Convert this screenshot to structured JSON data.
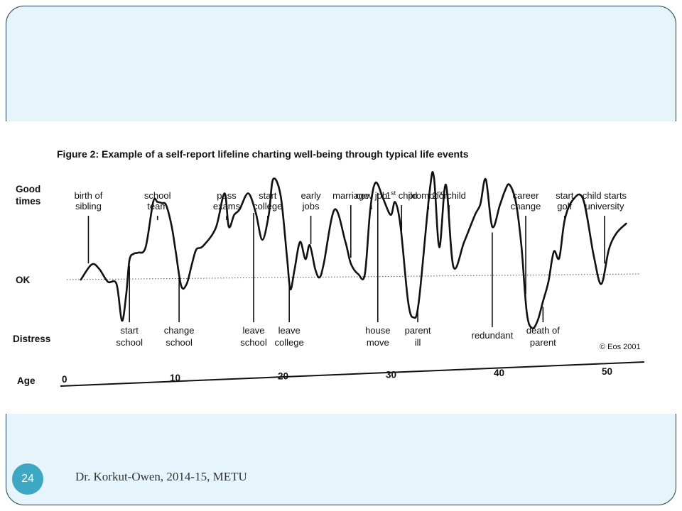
{
  "footer": {
    "page_number": "24",
    "author_text": "Dr. Korkut-Owen, 2014-15, METU"
  },
  "colors": {
    "slide_background": "#e6f5fb",
    "slide_border": "#1b3b5a",
    "badge": "#3ea7c3",
    "line": "#111111"
  },
  "chart_data": {
    "type": "line",
    "title": "Figure 2: Example of a self-report lifeline charting well-being through typical life events",
    "xlabel": "Age",
    "x_ticks": [
      "0",
      "10",
      "20",
      "30",
      "40",
      "50"
    ],
    "xlim": [
      0,
      52
    ],
    "y_levels": [
      "Good times",
      "OK",
      "Distress"
    ],
    "ylim": [
      -1,
      1
    ],
    "ok_reference_line": "dotted",
    "copyright": "© Eos 2001",
    "series": [
      {
        "x": [
          1.5,
          2.5,
          3.2,
          4.0,
          4.8,
          5.3,
          5.7,
          6.0,
          6.4,
          6.8,
          7.5,
          8.2,
          8.6,
          9.0,
          9.4,
          9.9,
          10.3,
          10.8,
          11.3,
          11.8,
          12.2,
          12.8,
          14.0,
          14.8,
          15.2,
          15.7,
          16.2,
          17.0,
          17.7,
          18.3,
          18.9,
          19.3,
          20.0,
          20.6,
          20.9,
          21.3,
          21.8,
          22.3,
          22.7,
          23.2,
          23.6,
          24.0,
          25.0,
          26.0,
          26.5,
          27.2,
          27.8,
          28.3,
          28.8,
          29.5,
          30.2,
          30.6,
          31.1,
          31.8,
          32.3,
          32.8,
          33.8,
          34.2,
          34.7,
          35.3,
          36.0,
          37.0,
          38.0,
          38.5,
          39.0,
          39.6,
          40.3,
          40.8,
          41.2,
          41.8,
          42.3,
          42.8,
          43.3,
          43.8,
          44.3,
          44.8,
          45.3,
          45.8,
          46.3,
          47.0,
          48.0,
          49.0,
          49.7,
          50.4,
          51.1,
          52.0
        ],
        "y": [
          0.0,
          0.14,
          0.1,
          -0.02,
          -0.04,
          -0.38,
          -0.14,
          0.18,
          0.24,
          0.25,
          0.3,
          0.72,
          0.72,
          0.71,
          0.69,
          0.5,
          0.25,
          -0.06,
          -0.04,
          0.15,
          0.28,
          0.31,
          0.48,
          0.8,
          0.49,
          0.6,
          0.65,
          0.8,
          0.62,
          0.37,
          0.6,
          0.93,
          0.78,
          0.2,
          -0.09,
          0.1,
          0.35,
          0.19,
          0.32,
          0.1,
          0.02,
          0.15,
          0.65,
          0.35,
          0.15,
          0.05,
          0.05,
          0.65,
          0.9,
          0.75,
          0.6,
          0.72,
          0.5,
          -0.2,
          -0.35,
          -0.2,
          0.82,
          0.95,
          0.3,
          0.88,
          0.12,
          0.35,
          0.6,
          0.7,
          0.93,
          0.49,
          0.69,
          0.83,
          0.88,
          0.71,
          0.31,
          -0.31,
          -0.45,
          -0.38,
          -0.2,
          -0.02,
          0.26,
          0.2,
          0.55,
          0.73,
          0.75,
          0.22,
          -0.04,
          0.28,
          0.43,
          0.52
        ]
      }
    ],
    "annotations": [
      {
        "label": [
          "birth of",
          "sibling"
        ],
        "x": 2.2,
        "position": "above"
      },
      {
        "label": [
          "start",
          "school"
        ],
        "x": 6.0,
        "position": "below"
      },
      {
        "label": [
          "school",
          "team"
        ],
        "x": 8.6,
        "position": "above"
      },
      {
        "label": [
          "change",
          "school"
        ],
        "x": 10.6,
        "position": "below"
      },
      {
        "label": [
          "pass",
          "exams"
        ],
        "x": 15.0,
        "position": "above"
      },
      {
        "label": [
          "start",
          "college"
        ],
        "x": 18.8,
        "position": "above"
      },
      {
        "label": [
          "leave",
          "school"
        ],
        "x": 17.5,
        "position": "below"
      },
      {
        "label": [
          "leave",
          "college"
        ],
        "x": 20.8,
        "position": "below"
      },
      {
        "label": [
          "early",
          "jobs"
        ],
        "x": 22.8,
        "position": "above"
      },
      {
        "label": [
          "marriage"
        ],
        "x": 26.5,
        "position": "above"
      },
      {
        "label": [
          "new job"
        ],
        "x": 28.4,
        "position": "above"
      },
      {
        "label": [
          "house",
          "move"
        ],
        "x": 29.0,
        "position": "below"
      },
      {
        "label": [
          "1st child"
        ],
        "x": 31.2,
        "position": "above"
      },
      {
        "label": [
          "parent",
          "ill"
        ],
        "x": 32.7,
        "position": "below"
      },
      {
        "label": [
          "promotion"
        ],
        "x": 33.7,
        "position": "above"
      },
      {
        "label": [
          "2nd child"
        ],
        "x": 35.6,
        "position": "above"
      },
      {
        "label": [
          "redundant"
        ],
        "x": 39.6,
        "position": "below"
      },
      {
        "label": [
          "career",
          "change"
        ],
        "x": 42.7,
        "position": "above"
      },
      {
        "label": [
          "death of",
          "parent"
        ],
        "x": 44.3,
        "position": "below"
      },
      {
        "label": [
          "start",
          "golf"
        ],
        "x": 46.3,
        "position": "above"
      },
      {
        "label": [
          "child starts",
          "university"
        ],
        "x": 50.0,
        "position": "above"
      }
    ]
  }
}
